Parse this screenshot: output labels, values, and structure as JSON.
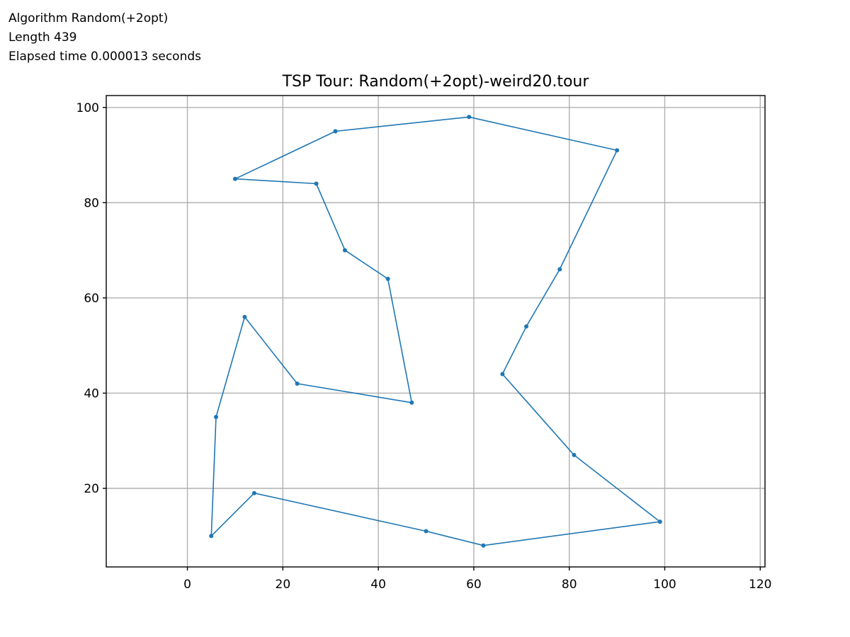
{
  "info": {
    "algorithm": "Algorithm Random(+2opt)",
    "length": "Length 439",
    "elapsed": "Elapsed time 0.000013 seconds"
  },
  "chart_data": {
    "type": "line",
    "title": "TSP Tour: Random(+2opt)-weird20.tour",
    "xlabel": "",
    "ylabel": "",
    "xlim": [
      -17,
      121
    ],
    "ylim": [
      3.5,
      102.5
    ],
    "xticks": [
      "0",
      "20",
      "40",
      "60",
      "80",
      "100",
      "120"
    ],
    "yticks": [
      "20",
      "40",
      "60",
      "80",
      "100"
    ],
    "grid": true,
    "line_color": "#1f77b4",
    "tour": [
      {
        "x": 31,
        "y": 95
      },
      {
        "x": 59,
        "y": 98
      },
      {
        "x": 90,
        "y": 91
      },
      {
        "x": 78,
        "y": 66
      },
      {
        "x": 71,
        "y": 54
      },
      {
        "x": 66,
        "y": 44
      },
      {
        "x": 81,
        "y": 27
      },
      {
        "x": 99,
        "y": 13
      },
      {
        "x": 62,
        "y": 8
      },
      {
        "x": 50,
        "y": 11
      },
      {
        "x": 14,
        "y": 19
      },
      {
        "x": 5,
        "y": 10
      },
      {
        "x": 6,
        "y": 35
      },
      {
        "x": 12,
        "y": 56
      },
      {
        "x": 23,
        "y": 42
      },
      {
        "x": 47,
        "y": 38
      },
      {
        "x": 42,
        "y": 64
      },
      {
        "x": 33,
        "y": 70
      },
      {
        "x": 27,
        "y": 84
      },
      {
        "x": 10,
        "y": 85
      },
      {
        "x": 31,
        "y": 95
      }
    ]
  }
}
